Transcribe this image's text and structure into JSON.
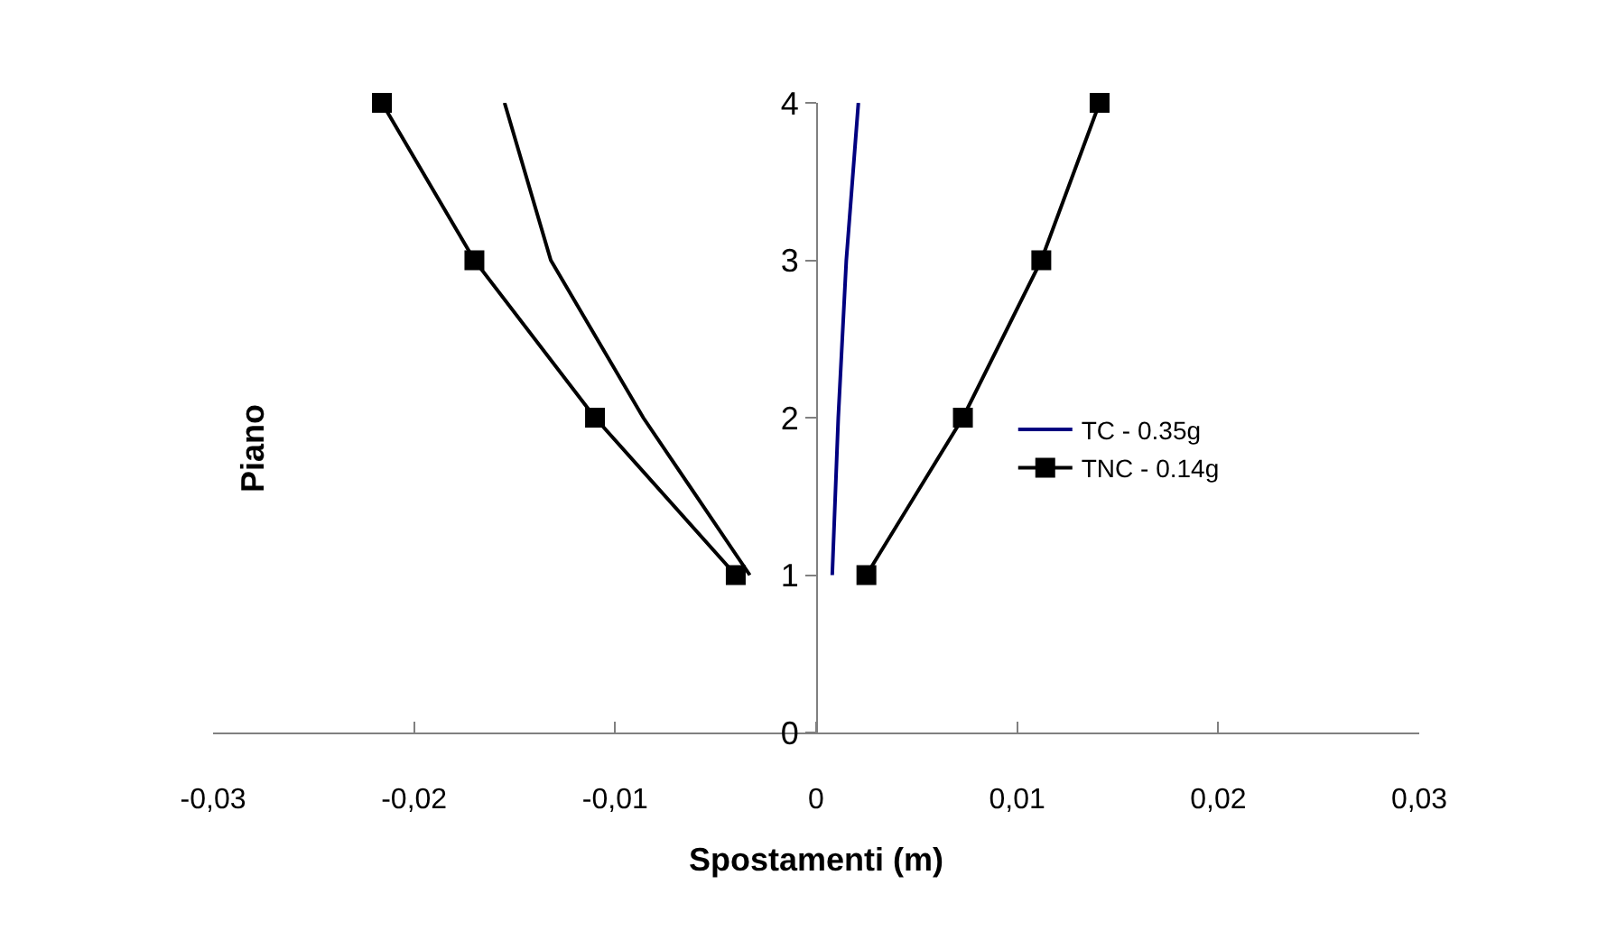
{
  "chart_data": {
    "type": "line",
    "xlabel": "Spostamenti (m)",
    "ylabel": "Piano",
    "xlim": [
      -0.03,
      0.03
    ],
    "xticks": [
      {
        "value": -0.03,
        "label": "-0,03"
      },
      {
        "value": -0.02,
        "label": "-0,02"
      },
      {
        "value": -0.01,
        "label": "-0,01"
      },
      0,
      {
        "value": 0.01,
        "label": "0,01"
      },
      {
        "value": 0.02,
        "label": "0,02"
      },
      {
        "value": 0.03,
        "label": "0,03"
      }
    ],
    "ylim": [
      0,
      4
    ],
    "yticks": [
      0,
      1,
      2,
      3,
      4
    ],
    "legend": "right",
    "series": [
      {
        "name": "TC - 0.35g",
        "color": "#000080",
        "marker": "none",
        "x": [
          0.0008,
          0.0011,
          0.0015,
          0.0021
        ],
        "values": [
          1,
          2,
          3,
          4
        ]
      },
      {
        "name": "TNC - 0.14g",
        "color": "#000000",
        "marker": "square",
        "x": [
          0.0025,
          0.0073,
          0.0112,
          0.0141
        ],
        "values": [
          1,
          2,
          3,
          4
        ]
      },
      {
        "color": "#000000",
        "marker": "none",
        "x": [
          -0.0033,
          -0.0086,
          -0.0132,
          -0.0155
        ],
        "values": [
          1,
          2,
          3,
          4
        ]
      },
      {
        "color": "#000000",
        "marker": "square",
        "x": [
          -0.004,
          -0.011,
          -0.017,
          -0.0216
        ],
        "values": [
          1,
          2,
          3,
          4
        ]
      }
    ]
  }
}
